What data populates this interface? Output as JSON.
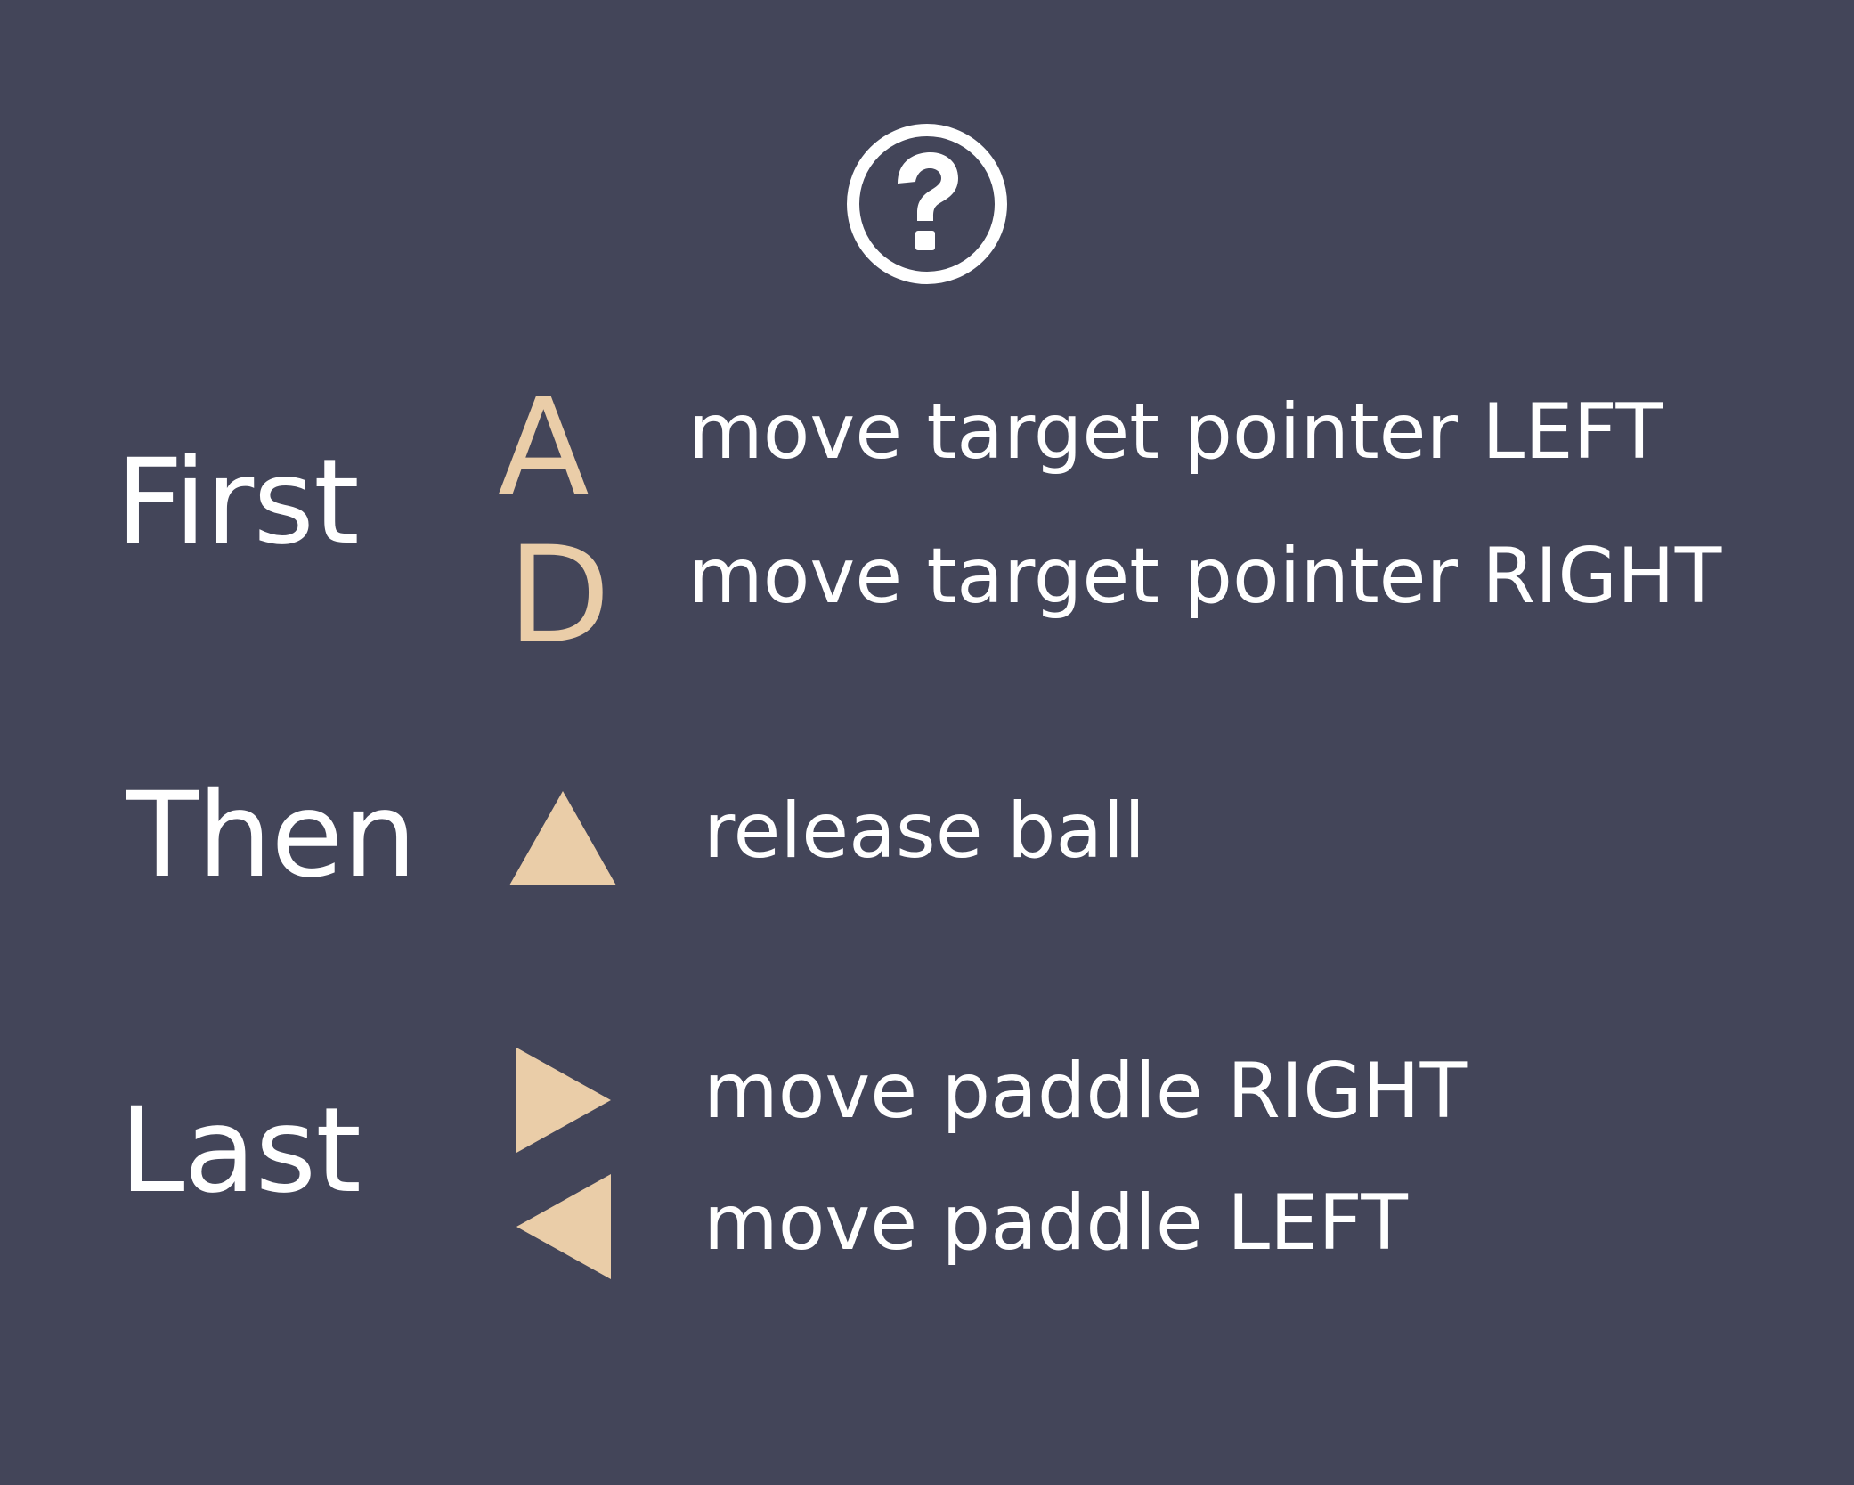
{
  "colors": {
    "background": "#434559",
    "text": "#ffffff",
    "accent": "#eacda8"
  },
  "header": {
    "icon": "help-question-icon"
  },
  "instructions": {
    "first": {
      "stage_label": "First",
      "controls": [
        {
          "key": "A",
          "action": "move target pointer LEFT"
        },
        {
          "key": "D",
          "action": "move target pointer RIGHT"
        }
      ]
    },
    "then": {
      "stage_label": "Then",
      "controls": [
        {
          "icon": "up-triangle-icon",
          "action": "release ball"
        }
      ]
    },
    "last": {
      "stage_label": "Last",
      "controls": [
        {
          "icon": "right-triangle-icon",
          "action": "move paddle RIGHT"
        },
        {
          "icon": "left-triangle-icon",
          "action": "move paddle LEFT"
        }
      ]
    }
  }
}
